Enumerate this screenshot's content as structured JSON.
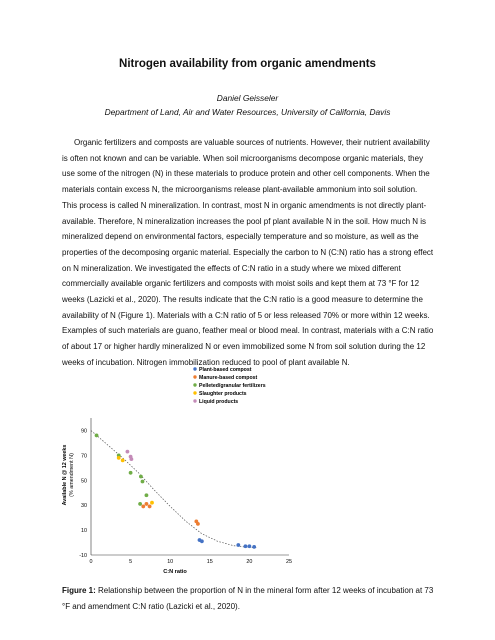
{
  "title": "Nitrogen availability from organic amendments",
  "author": "Daniel Geisseler",
  "affiliation": "Department of Land, Air and Water Resources, University of California, Davis",
  "body": "Organic fertilizers and composts are valuable sources of nutrients. However, their nutrient availability is often not known and can be variable. When soil microorganisms decompose organic materials, they use some of the nitrogen (N) in these materials to produce protein and other cell components. When the materials contain excess N, the microorganisms release plant-available ammonium into soil solution. This process is called N mineralization. In contrast, most N in organic amendments is not directly plant-available. Therefore, N mineralization increases the pool pf plant available N in the soil. How much N is mineralized depend on environmental factors, especially temperature and so moisture, as well as the properties of the decomposing organic material. Especially the carbon to N (C:N) ratio has a strong effect on N mineralization. We investigated the effects of C:N ratio in a study where we mixed different commercially available organic fertilizers and composts with moist soils and kept them at 73 °F for 12 weeks (Lazicki et al., 2020). The results indicate that the C:N ratio is a good measure to determine the availability of N (Figure 1). Materials with a C:N ratio of 5 or less released 70% or more within 12 weeks. Examples of such materials are guano, feather meal or blood meal. In contrast, materials with a C:N ratio of about 17 or higher hardly mineralized N or even immobilized some N from soil solution during the 12 weeks of incubation. Nitrogen immobilization reduced to pool of plant available N.",
  "caption": {
    "label": "Figure 1:",
    "text": " Relationship between the proportion of N in the mineral form after 12 weeks of incubation at 73 °F and amendment C:N ratio (Lazicki et al., 2020)."
  },
  "chart_data": {
    "type": "scatter",
    "xlabel": "C:N ratio",
    "ylabel": "Available N @ 12 weeks",
    "ylabel2": "(% amendment N)",
    "xlim": [
      0,
      25
    ],
    "ylim": [
      -10,
      100
    ],
    "xticks": [
      0,
      5,
      10,
      15,
      20,
      25
    ],
    "yticks": [
      -10,
      10,
      30,
      50,
      70,
      90
    ],
    "grid": false,
    "legend_position": "top-right",
    "colors": {
      "Plant-based compost": "#4472c4",
      "Manure-based compost": "#ed7d31",
      "Pelleted/granular fertilizers": "#70ad47",
      "Slaughter products": "#ffc000",
      "Liquid products": "#c48bb8",
      "trend": "#555555"
    },
    "series": [
      {
        "name": "Plant-based compost",
        "points": [
          [
            13.7,
            2
          ],
          [
            14.0,
            1
          ],
          [
            18.6,
            -2
          ],
          [
            19.5,
            -3
          ],
          [
            20.0,
            -3
          ],
          [
            20.6,
            -3.5
          ]
        ]
      },
      {
        "name": "Manure-based compost",
        "points": [
          [
            6.6,
            29
          ],
          [
            7.0,
            31
          ],
          [
            7.4,
            29
          ],
          [
            13.3,
            17
          ],
          [
            13.5,
            15
          ]
        ]
      },
      {
        "name": "Pelleted/granular fertilizers",
        "points": [
          [
            0.7,
            86
          ],
          [
            3.5,
            70
          ],
          [
            5.0,
            56
          ],
          [
            6.3,
            53
          ],
          [
            6.5,
            49
          ],
          [
            7.0,
            38
          ],
          [
            6.2,
            31
          ]
        ]
      },
      {
        "name": "Slaughter products",
        "points": [
          [
            3.5,
            68
          ],
          [
            4.0,
            66
          ],
          [
            7.7,
            32
          ]
        ]
      },
      {
        "name": "Liquid products",
        "points": [
          [
            4.6,
            73
          ],
          [
            5.0,
            69
          ],
          [
            5.1,
            67
          ]
        ]
      }
    ],
    "trend": [
      [
        0,
        90
      ],
      [
        2,
        79
      ],
      [
        4,
        68
      ],
      [
        6,
        56
      ],
      [
        8,
        42
      ],
      [
        10,
        29
      ],
      [
        12,
        17
      ],
      [
        14,
        7
      ],
      [
        16,
        1
      ],
      [
        18,
        -2.5
      ],
      [
        20,
        -4
      ],
      [
        21,
        -4
      ]
    ]
  }
}
